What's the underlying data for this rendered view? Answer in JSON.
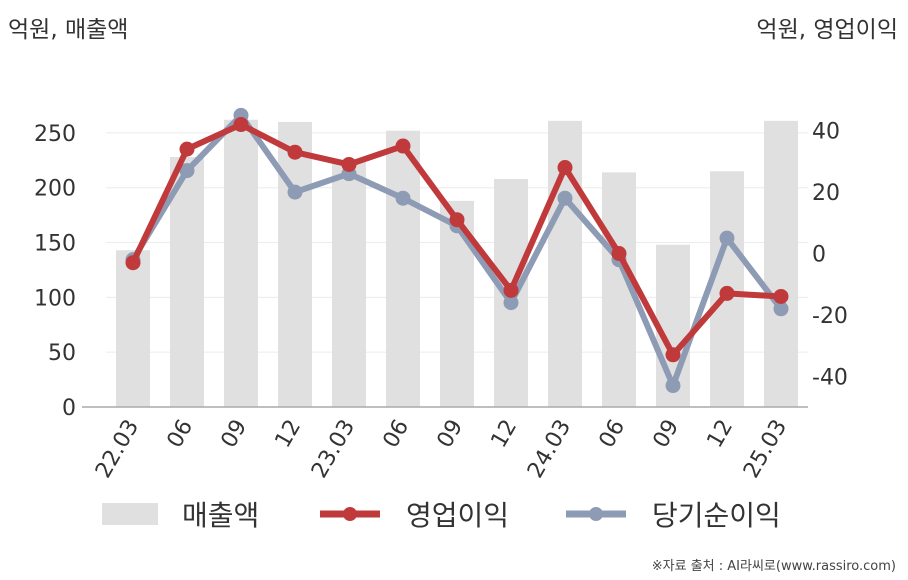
{
  "left_unit": "억원, 매출액",
  "right_unit": "억원, 영업이익",
  "source": "※자료 출처 : AI라씨로(www.rassiro.com)",
  "legend": {
    "revenue": "매출액",
    "operating_profit": "영업이익",
    "net_income": "당기순이익"
  },
  "colors": {
    "revenue": "#e0e0e0",
    "operating_profit": "#c0393b",
    "net_income": "#8e9bb5"
  },
  "chart_data": {
    "type": "bar+line",
    "categories": [
      "22.03",
      "06",
      "09",
      "12",
      "23.03",
      "06",
      "09",
      "12",
      "24.03",
      "06",
      "09",
      "12",
      "25.03"
    ],
    "y_left": {
      "min": 0,
      "max": 280,
      "ticks": [
        0,
        50,
        100,
        150,
        200,
        250
      ]
    },
    "y_right": {
      "min": -50,
      "max": 50,
      "ticks": [
        -40,
        -20,
        0,
        20,
        40
      ]
    },
    "grid": true,
    "legend_position": "bottom",
    "series": [
      {
        "name": "매출액",
        "kind": "bar",
        "axis": "left",
        "values": [
          143,
          228,
          262,
          260,
          223,
          252,
          188,
          208,
          261,
          214,
          148,
          215,
          261
        ]
      },
      {
        "name": "영업이익",
        "kind": "line",
        "axis": "right",
        "values": [
          -3,
          34,
          42,
          33,
          29,
          35,
          11,
          -12,
          28,
          0,
          -33,
          -13,
          -14
        ]
      },
      {
        "name": "당기순이익",
        "kind": "line",
        "axis": "right",
        "values": [
          -2,
          27,
          45,
          20,
          26,
          18,
          9,
          -16,
          18,
          -2,
          -43,
          5,
          -18
        ]
      }
    ]
  }
}
